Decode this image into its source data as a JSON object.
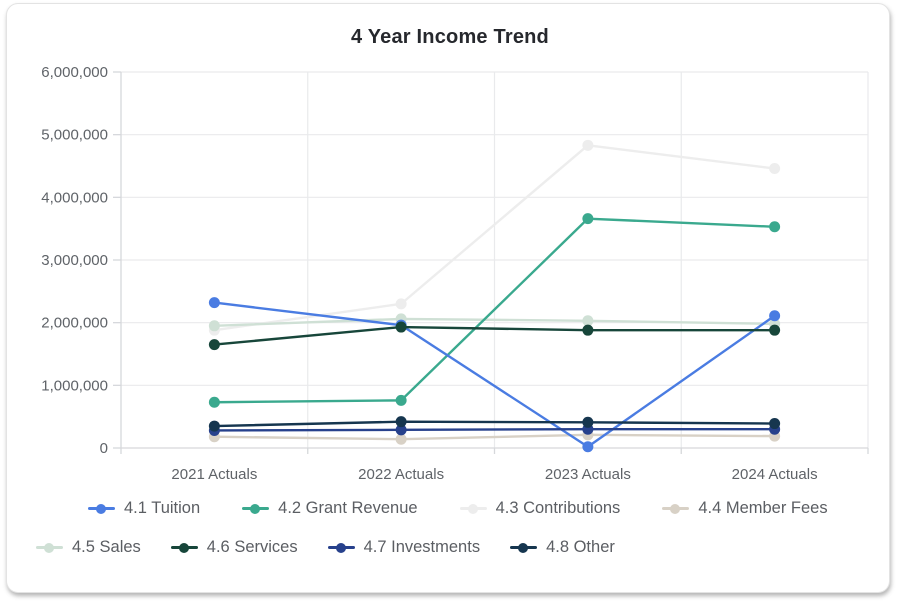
{
  "chart_data": {
    "type": "line",
    "title": "4 Year Income Trend",
    "categories": [
      "2021 Actuals",
      "2022 Actuals",
      "2023 Actuals",
      "2024 Actuals"
    ],
    "series": [
      {
        "name": "4.1 Tuition",
        "color": "#4a7ce2",
        "values": [
          2320000,
          1960000,
          20000,
          2110000
        ]
      },
      {
        "name": "4.2 Grant Revenue",
        "color": "#3aa98e",
        "values": [
          730000,
          760000,
          3660000,
          3530000
        ]
      },
      {
        "name": "4.3 Contributions",
        "color": "#ededed",
        "values": [
          1880000,
          2300000,
          4830000,
          4460000
        ]
      },
      {
        "name": "4.4 Member Fees",
        "color": "#d8d1c6",
        "values": [
          180000,
          140000,
          210000,
          190000
        ]
      },
      {
        "name": "4.5 Sales",
        "color": "#cfe0d5",
        "values": [
          1950000,
          2060000,
          2030000,
          1980000
        ]
      },
      {
        "name": "4.6 Services",
        "color": "#17463a",
        "values": [
          1650000,
          1930000,
          1880000,
          1880000
        ]
      },
      {
        "name": "4.7 Investments",
        "color": "#27418c",
        "values": [
          280000,
          290000,
          300000,
          300000
        ]
      },
      {
        "name": "4.8 Other",
        "color": "#16364f",
        "values": [
          350000,
          420000,
          410000,
          390000
        ]
      }
    ],
    "ylim": [
      0,
      6000000
    ],
    "ytick_step": 1000000,
    "ytick_labels": [
      "0",
      "1,000,000",
      "2,000,000",
      "3,000,000",
      "4,000,000",
      "5,000,000",
      "6,000,000"
    ],
    "grid": true,
    "legend_position": "bottom",
    "legend_rows": 2
  },
  "colors": {
    "grid": "#e9eaec",
    "axis": "#d6d8db",
    "tick_label": "#5f6368",
    "legend_label": "#5b5e63",
    "title": "#26282d",
    "card_border": "#e3e3e3"
  }
}
